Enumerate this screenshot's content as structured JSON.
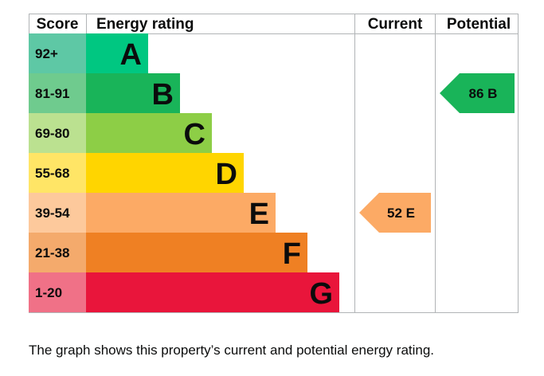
{
  "chart_data": {
    "type": "bar",
    "headers": {
      "score": "Score",
      "rating": "Energy rating",
      "current": "Current",
      "potential": "Potential"
    },
    "bands": [
      {
        "score": "92+",
        "letter": "A",
        "color": "#00c781",
        "score_bg": "#5ec8a5"
      },
      {
        "score": "81-91",
        "letter": "B",
        "color": "#19b459",
        "score_bg": "#6fcb8e"
      },
      {
        "score": "69-80",
        "letter": "C",
        "color": "#8dce46",
        "score_bg": "#bbe190"
      },
      {
        "score": "55-68",
        "letter": "D",
        "color": "#ffd500",
        "score_bg": "#ffe566"
      },
      {
        "score": "39-54",
        "letter": "E",
        "color": "#fcaa65",
        "score_bg": "#fdc99c"
      },
      {
        "score": "21-38",
        "letter": "F",
        "color": "#ef8023",
        "score_bg": "#f4aa6c"
      },
      {
        "score": "1-20",
        "letter": "G",
        "color": "#e9153b",
        "score_bg": "#f07187"
      }
    ],
    "current": {
      "value": 52,
      "letter": "E",
      "label": "52 E",
      "color": "#fcaa65"
    },
    "potential": {
      "value": 86,
      "letter": "B",
      "label": "86 B",
      "color": "#19b459"
    }
  },
  "caption": "The graph shows this property’s current and potential energy rating."
}
